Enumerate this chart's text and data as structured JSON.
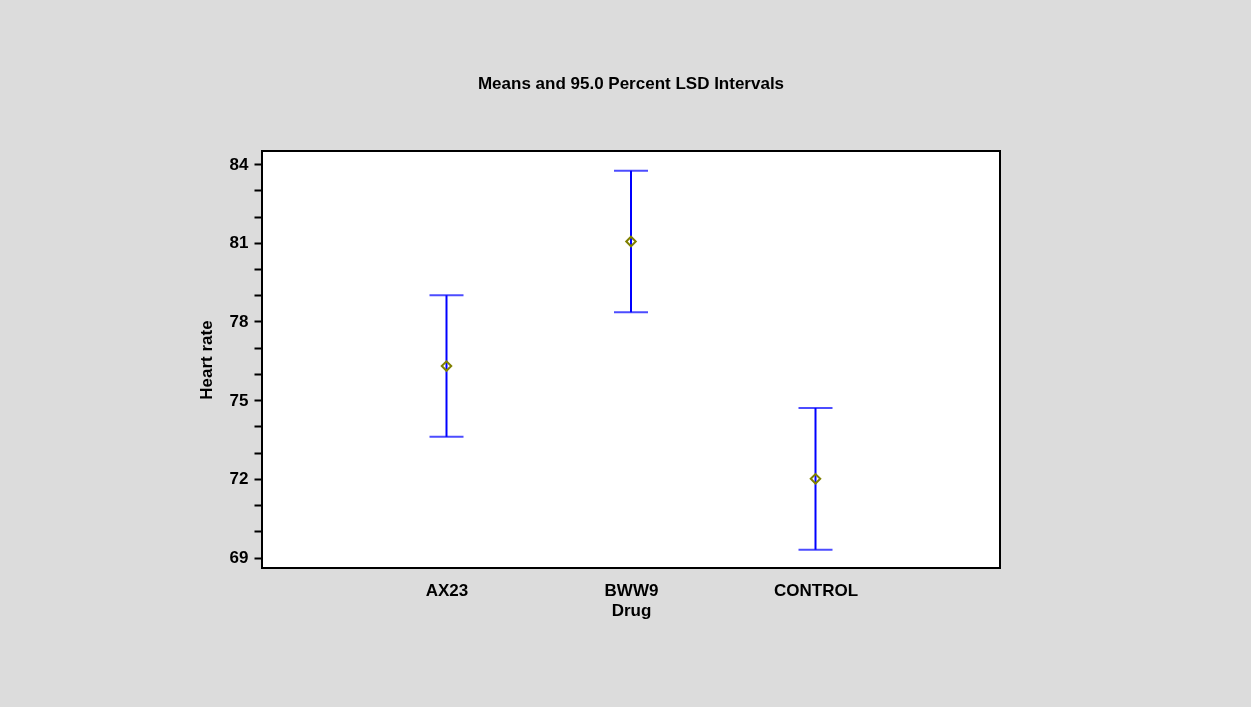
{
  "chart_data": {
    "type": "scatter",
    "title": "Means and 95.0 Percent LSD Intervals",
    "xlabel": "Drug",
    "ylabel": "Heart rate",
    "categories": [
      "AX23",
      "BWW9",
      "CONTROL"
    ],
    "series": [
      {
        "color": "#808000",
        "values": [
          76.3,
          81.05,
          72.0
        ],
        "errors": [
          2.7,
          2.7,
          2.7
        ]
      }
    ],
    "marker": "diamond",
    "ylim": [
      68.6,
      84.5
    ],
    "yticks": [
      69,
      {
        "value": 70,
        "label": null
      },
      {
        "value": 71,
        "label": null
      },
      72,
      {
        "value": 73,
        "label": null
      },
      {
        "value": 74,
        "label": null
      },
      75,
      {
        "value": 76,
        "label": null
      },
      {
        "value": 77,
        "label": null
      },
      78,
      {
        "value": 79,
        "label": null
      },
      {
        "value": 80,
        "label": null
      },
      81,
      {
        "value": 82,
        "label": null
      },
      {
        "value": 83,
        "label": null
      },
      84
    ],
    "grid": false,
    "legend": false
  }
}
